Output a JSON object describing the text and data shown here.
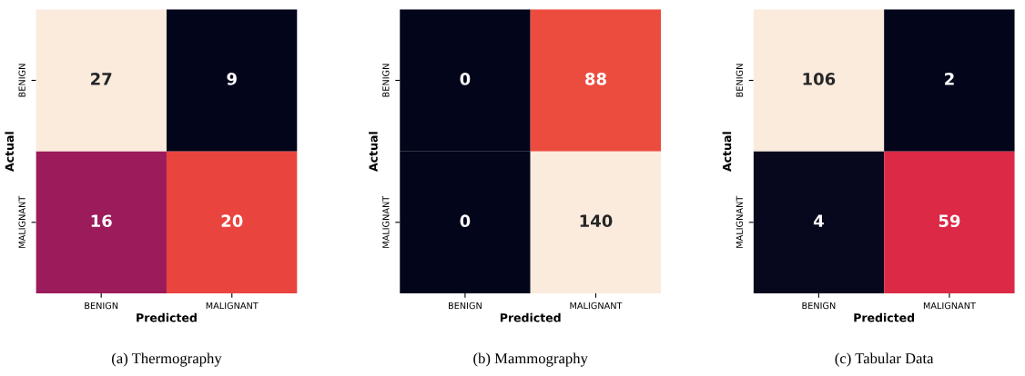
{
  "chart_data": [
    {
      "type": "heatmap",
      "title": "(a) Thermography",
      "xlabel": "Predicted",
      "ylabel": "Actual",
      "categories": [
        "BENIGN",
        "MALIGNANT"
      ],
      "y_categories": [
        "BENIGN",
        "MALIGNANT"
      ],
      "cells": [
        [
          27,
          9
        ],
        [
          16,
          20
        ]
      ],
      "data_labels": true
    },
    {
      "type": "heatmap",
      "title": "(b) Mammography",
      "xlabel": "Predicted",
      "ylabel": "Actual",
      "categories": [
        "BENIGN",
        "MALIGNANT"
      ],
      "y_categories": [
        "BENIGN",
        "MALIGNANT"
      ],
      "cells": [
        [
          0,
          88
        ],
        [
          0,
          140
        ]
      ],
      "data_labels": true
    },
    {
      "type": "heatmap",
      "title": "(c) Tabular Data",
      "xlabel": "Predicted",
      "ylabel": "Actual",
      "categories": [
        "BENIGN",
        "MALIGNANT"
      ],
      "y_categories": [
        "BENIGN",
        "MALIGNANT"
      ],
      "cells": [
        [
          106,
          2
        ],
        [
          4,
          59
        ]
      ],
      "data_labels": true
    }
  ]
}
